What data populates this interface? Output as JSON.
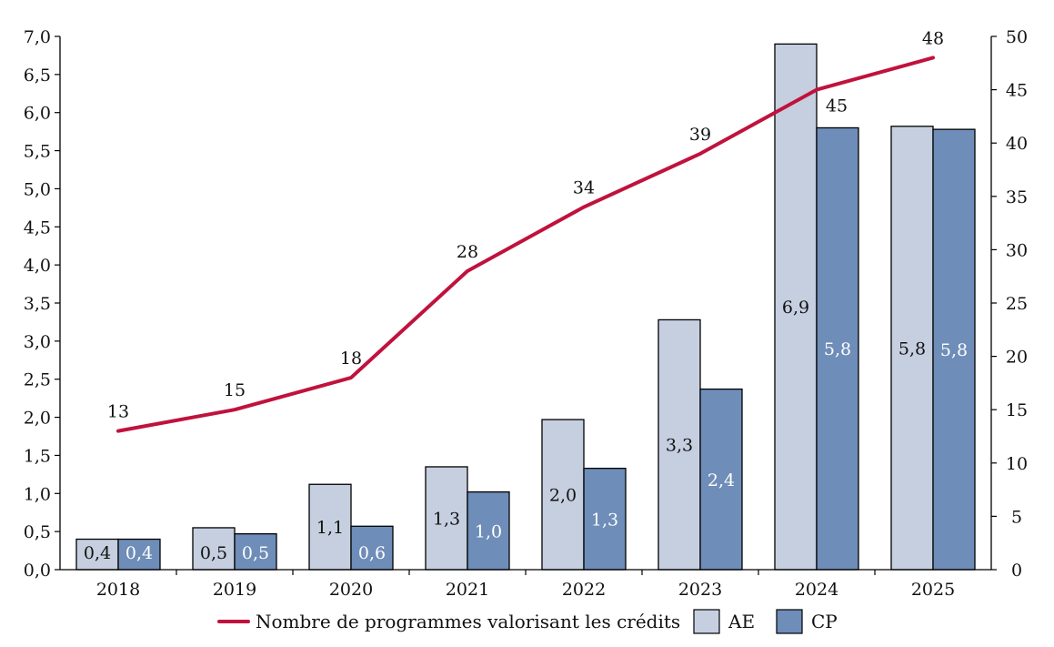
{
  "chart_data": {
    "type": "bar",
    "categories": [
      "2018",
      "2019",
      "2020",
      "2021",
      "2022",
      "2023",
      "2024",
      "2025"
    ],
    "series": [
      {
        "name": "AE",
        "values": [
          0.4,
          0.55,
          1.12,
          1.35,
          1.97,
          3.28,
          6.9,
          5.82
        ],
        "labels": [
          "0,4",
          "0,5",
          "1,1",
          "1,3",
          "2,0",
          "3,3",
          "6,9",
          "5,8"
        ],
        "axis": "left",
        "kind": "bar",
        "color": "#c5cfe0"
      },
      {
        "name": "CP",
        "values": [
          0.4,
          0.47,
          0.57,
          1.02,
          1.33,
          2.37,
          5.8,
          5.78
        ],
        "labels": [
          "0,4",
          "0,5",
          "0,6",
          "1,0",
          "1,3",
          "2,4",
          "5,8",
          "5,8"
        ],
        "axis": "left",
        "kind": "bar",
        "color": "#6e8db8"
      },
      {
        "name": "Nombre de programmes valorisant les crédits",
        "values": [
          13,
          15,
          18,
          28,
          34,
          39,
          45,
          48
        ],
        "labels": [
          "13",
          "15",
          "18",
          "28",
          "34",
          "39",
          "45",
          "48"
        ],
        "axis": "right",
        "kind": "line",
        "color": "#c0123d"
      }
    ],
    "y_left": {
      "min": 0,
      "max": 7,
      "step": 0.5,
      "tick_labels": [
        "0,0",
        "0,5",
        "1,0",
        "1,5",
        "2,0",
        "2,5",
        "3,0",
        "3,5",
        "4,0",
        "4,5",
        "5,0",
        "5,5",
        "6,0",
        "6,5",
        "7,0"
      ]
    },
    "y_right": {
      "min": 0,
      "max": 50,
      "step": 5,
      "tick_labels": [
        "0",
        "5",
        "10",
        "15",
        "20",
        "25",
        "30",
        "35",
        "40",
        "45",
        "50"
      ]
    },
    "title": "",
    "xlabel": "",
    "ylabel": "",
    "grid": false,
    "legend_position": "bottom"
  }
}
